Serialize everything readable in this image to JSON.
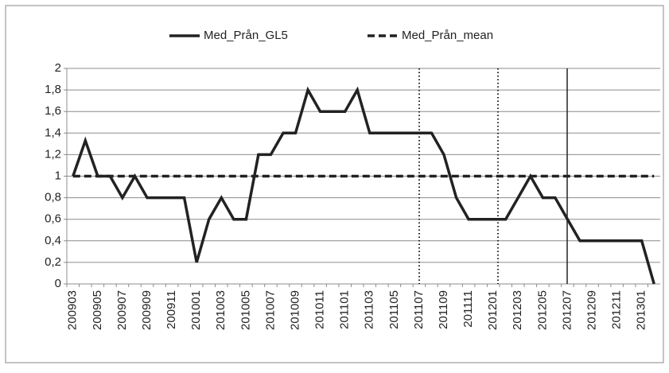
{
  "chart_data": {
    "type": "line",
    "categories": [
      "200903",
      null,
      "200905",
      null,
      "200907",
      null,
      "200909",
      null,
      "200911",
      null,
      "201001",
      null,
      "201003",
      null,
      "201005",
      null,
      "201007",
      null,
      "201009",
      null,
      "201011",
      null,
      "201101",
      null,
      "201103",
      null,
      "201105",
      null,
      "201107",
      null,
      "201109",
      null,
      "201111",
      null,
      "201201",
      null,
      "201203",
      null,
      "201205",
      null,
      "201207",
      null,
      "201209",
      null,
      "201211",
      null,
      "201301",
      null
    ],
    "series": [
      {
        "name": "Med_Prån_GL5",
        "color": "#222222",
        "dash": false,
        "values": [
          1,
          1.33,
          1,
          1,
          0.8,
          1,
          0.8,
          0.8,
          0.8,
          0.8,
          0.2,
          0.6,
          0.8,
          0.6,
          0.6,
          1.2,
          1.2,
          1.4,
          1.4,
          1.8,
          1.6,
          1.6,
          1.6,
          1.8,
          1.4,
          1.4,
          1.4,
          1.4,
          1.4,
          1.4,
          1.2,
          0.8,
          0.6,
          0.6,
          0.6,
          0.6,
          0.8,
          1,
          0.8,
          0.8,
          0.6,
          0.4,
          0.4,
          0.4,
          0.4,
          0.4,
          0.4,
          0
        ]
      },
      {
        "name": "Med_Prån_mean",
        "color": "#222222",
        "dash": true,
        "values": [
          1,
          1,
          1,
          1,
          1,
          1,
          1,
          1,
          1,
          1,
          1,
          1,
          1,
          1,
          1,
          1,
          1,
          1,
          1,
          1,
          1,
          1,
          1,
          1,
          1,
          1,
          1,
          1,
          1,
          1,
          1,
          1,
          1,
          1,
          1,
          1,
          1,
          1,
          1,
          1,
          1,
          1,
          1,
          1,
          1,
          1,
          1,
          1
        ]
      }
    ],
    "ylim": [
      0,
      2
    ],
    "yticks": [
      0,
      {
        "value": 0.2,
        "label": "0,2"
      },
      {
        "value": 0.4,
        "label": "0,4"
      },
      {
        "value": 0.6,
        "label": "0,6"
      },
      {
        "value": 0.8,
        "label": "0,8"
      },
      1,
      {
        "value": 1.2,
        "label": "1,2"
      },
      {
        "value": 1.4,
        "label": "1,4"
      },
      {
        "value": 1.6,
        "label": "1,6"
      },
      {
        "value": 1.8,
        "label": "1,8"
      },
      2
    ],
    "grid": true,
    "legend": "top"
  }
}
